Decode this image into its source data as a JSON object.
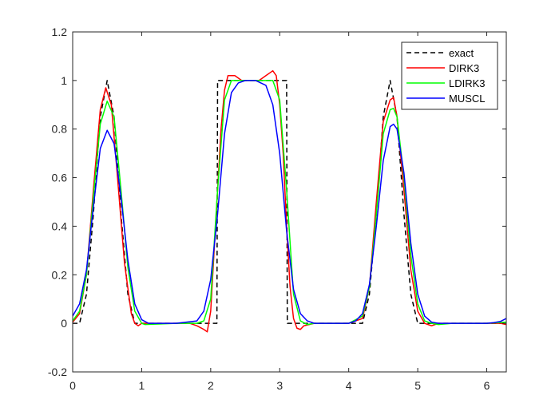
{
  "chart_data": {
    "type": "line",
    "title": "",
    "xlabel": "",
    "ylabel": "",
    "xlim": [
      0,
      6.2832
    ],
    "ylim": [
      -0.2,
      1.2
    ],
    "grid": false,
    "legend_position": "top-right",
    "x_ticks": [
      0,
      1,
      2,
      3,
      4,
      5,
      6
    ],
    "y_ticks": [
      -0.2,
      0,
      0.2,
      0.4,
      0.6,
      0.8,
      1.0,
      1.2
    ],
    "x_tick_labels": [
      "0",
      "1",
      "2",
      "3",
      "4",
      "5",
      "6"
    ],
    "y_tick_labels": [
      "-0.2",
      "0",
      "0.2",
      "0.4",
      "0.6",
      "0.8",
      "1",
      "1.2"
    ],
    "series": [
      {
        "name": "exact",
        "color": "#000000",
        "style": "dashed",
        "points": [
          [
            0,
            0
          ],
          [
            0.1,
            0
          ],
          [
            0.2,
            0.12
          ],
          [
            0.3,
            0.45
          ],
          [
            0.4,
            0.85
          ],
          [
            0.5,
            1.0
          ],
          [
            0.6,
            0.85
          ],
          [
            0.7,
            0.45
          ],
          [
            0.8,
            0.12
          ],
          [
            0.9,
            0
          ],
          [
            1.0,
            0
          ],
          [
            1.5,
            0
          ],
          [
            2.09,
            0
          ],
          [
            2.1,
            1.0
          ],
          [
            2.5,
            1.0
          ],
          [
            3.1,
            1.0
          ],
          [
            3.11,
            0
          ],
          [
            3.5,
            0
          ],
          [
            4.2,
            0
          ],
          [
            4.3,
            0.12
          ],
          [
            4.4,
            0.45
          ],
          [
            4.5,
            0.85
          ],
          [
            4.6,
            1.0
          ],
          [
            4.7,
            0.85
          ],
          [
            4.8,
            0.45
          ],
          [
            4.9,
            0.12
          ],
          [
            5.0,
            0
          ],
          [
            5.1,
            0
          ],
          [
            5.5,
            0
          ],
          [
            6.2832,
            0
          ]
        ]
      },
      {
        "name": "DIRK3",
        "color": "#ff0000",
        "style": "solid",
        "points": [
          [
            0,
            0.005
          ],
          [
            0.1,
            0.04
          ],
          [
            0.2,
            0.2
          ],
          [
            0.3,
            0.55
          ],
          [
            0.4,
            0.88
          ],
          [
            0.48,
            0.97
          ],
          [
            0.56,
            0.9
          ],
          [
            0.65,
            0.6
          ],
          [
            0.75,
            0.25
          ],
          [
            0.85,
            0.04
          ],
          [
            0.9,
            0
          ],
          [
            0.95,
            -0.01
          ],
          [
            1.0,
            0
          ],
          [
            1.5,
            0
          ],
          [
            1.7,
            0
          ],
          [
            1.8,
            -0.01
          ],
          [
            1.9,
            -0.025
          ],
          [
            1.95,
            -0.035
          ],
          [
            2.0,
            0.05
          ],
          [
            2.05,
            0.3
          ],
          [
            2.1,
            0.55
          ],
          [
            2.15,
            0.8
          ],
          [
            2.2,
            0.96
          ],
          [
            2.25,
            1.02
          ],
          [
            2.35,
            1.02
          ],
          [
            2.45,
            1.0
          ],
          [
            2.55,
            1.0
          ],
          [
            2.7,
            1.0
          ],
          [
            2.8,
            1.02
          ],
          [
            2.9,
            1.04
          ],
          [
            2.95,
            1.02
          ],
          [
            3.0,
            0.9
          ],
          [
            3.05,
            0.7
          ],
          [
            3.1,
            0.4
          ],
          [
            3.15,
            0.15
          ],
          [
            3.2,
            0.02
          ],
          [
            3.25,
            -0.02
          ],
          [
            3.3,
            -0.025
          ],
          [
            3.35,
            -0.01
          ],
          [
            3.5,
            0
          ],
          [
            4.0,
            0
          ],
          [
            4.2,
            0.02
          ],
          [
            4.3,
            0.15
          ],
          [
            4.4,
            0.5
          ],
          [
            4.5,
            0.83
          ],
          [
            4.6,
            0.92
          ],
          [
            4.65,
            0.93
          ],
          [
            4.7,
            0.85
          ],
          [
            4.8,
            0.55
          ],
          [
            4.9,
            0.22
          ],
          [
            5.0,
            0.05
          ],
          [
            5.1,
            0
          ],
          [
            5.2,
            -0.01
          ],
          [
            5.3,
            0
          ],
          [
            5.5,
            0
          ],
          [
            6.0,
            0
          ],
          [
            6.2,
            0
          ],
          [
            6.2832,
            -0.005
          ]
        ]
      },
      {
        "name": "LDIRK3",
        "color": "#00ff00",
        "style": "solid",
        "points": [
          [
            0,
            0.01
          ],
          [
            0.1,
            0.05
          ],
          [
            0.2,
            0.2
          ],
          [
            0.3,
            0.52
          ],
          [
            0.4,
            0.82
          ],
          [
            0.5,
            0.915
          ],
          [
            0.6,
            0.85
          ],
          [
            0.7,
            0.55
          ],
          [
            0.8,
            0.23
          ],
          [
            0.9,
            0.05
          ],
          [
            1.0,
            0
          ],
          [
            1.05,
            -0.005
          ],
          [
            1.5,
            0
          ],
          [
            1.8,
            0
          ],
          [
            1.9,
            0.01
          ],
          [
            2.0,
            0.1
          ],
          [
            2.1,
            0.55
          ],
          [
            2.2,
            0.92
          ],
          [
            2.3,
            1.0
          ],
          [
            2.5,
            1.0
          ],
          [
            2.7,
            1.0
          ],
          [
            2.9,
            1.0
          ],
          [
            3.0,
            0.92
          ],
          [
            3.1,
            0.55
          ],
          [
            3.2,
            0.12
          ],
          [
            3.3,
            0.01
          ],
          [
            3.4,
            -0.005
          ],
          [
            3.5,
            0
          ],
          [
            4.0,
            0
          ],
          [
            4.2,
            0.03
          ],
          [
            4.3,
            0.15
          ],
          [
            4.4,
            0.45
          ],
          [
            4.5,
            0.78
          ],
          [
            4.6,
            0.88
          ],
          [
            4.65,
            0.885
          ],
          [
            4.7,
            0.85
          ],
          [
            4.8,
            0.6
          ],
          [
            4.9,
            0.28
          ],
          [
            5.0,
            0.08
          ],
          [
            5.1,
            0.01
          ],
          [
            5.2,
            0
          ],
          [
            5.3,
            -0.005
          ],
          [
            5.5,
            0
          ],
          [
            6.0,
            0
          ],
          [
            6.2832,
            0.005
          ]
        ]
      },
      {
        "name": "MUSCL",
        "color": "#0000ff",
        "style": "solid",
        "points": [
          [
            0,
            0.03
          ],
          [
            0.1,
            0.08
          ],
          [
            0.2,
            0.22
          ],
          [
            0.3,
            0.48
          ],
          [
            0.4,
            0.72
          ],
          [
            0.5,
            0.795
          ],
          [
            0.6,
            0.74
          ],
          [
            0.7,
            0.52
          ],
          [
            0.8,
            0.26
          ],
          [
            0.9,
            0.08
          ],
          [
            1.0,
            0.015
          ],
          [
            1.1,
            0
          ],
          [
            1.5,
            0
          ],
          [
            1.8,
            0.01
          ],
          [
            1.9,
            0.05
          ],
          [
            2.0,
            0.18
          ],
          [
            2.1,
            0.45
          ],
          [
            2.2,
            0.78
          ],
          [
            2.3,
            0.95
          ],
          [
            2.4,
            0.99
          ],
          [
            2.5,
            1.0
          ],
          [
            2.65,
            1.0
          ],
          [
            2.8,
            0.98
          ],
          [
            2.9,
            0.9
          ],
          [
            3.0,
            0.7
          ],
          [
            3.1,
            0.38
          ],
          [
            3.2,
            0.14
          ],
          [
            3.3,
            0.04
          ],
          [
            3.4,
            0.01
          ],
          [
            3.5,
            0
          ],
          [
            4.0,
            0
          ],
          [
            4.1,
            0.01
          ],
          [
            4.2,
            0.04
          ],
          [
            4.3,
            0.16
          ],
          [
            4.4,
            0.4
          ],
          [
            4.5,
            0.67
          ],
          [
            4.6,
            0.81
          ],
          [
            4.65,
            0.82
          ],
          [
            4.7,
            0.8
          ],
          [
            4.8,
            0.62
          ],
          [
            4.9,
            0.33
          ],
          [
            5.0,
            0.12
          ],
          [
            5.1,
            0.03
          ],
          [
            5.2,
            0.005
          ],
          [
            5.3,
            0
          ],
          [
            5.8,
            0
          ],
          [
            6.0,
            0
          ],
          [
            6.1,
            0.003
          ],
          [
            6.2,
            0.008
          ],
          [
            6.2832,
            0.02
          ]
        ]
      }
    ]
  }
}
